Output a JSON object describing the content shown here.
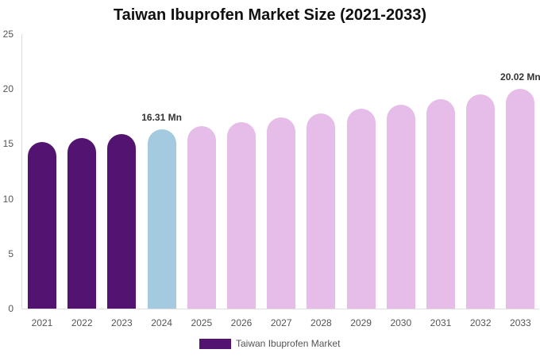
{
  "chart_data": {
    "type": "bar",
    "title": "Taiwan Ibuprofen Market Size (2021-2033)",
    "xlabel": "",
    "ylabel": "",
    "ylim": [
      0,
      25
    ],
    "yticks": [
      "0",
      "5",
      "10",
      "15",
      "20",
      "25"
    ],
    "grid": false,
    "legend_position": "bottom",
    "categories": [
      "2021",
      "2022",
      "2023",
      "2024",
      "2025",
      "2026",
      "2027",
      "2028",
      "2029",
      "2030",
      "2031",
      "2032",
      "2033"
    ],
    "series": [
      {
        "name": "Taiwan Ibuprofen Market",
        "values": [
          15.17,
          15.5,
          15.9,
          16.31,
          16.6,
          17.0,
          17.4,
          17.8,
          18.2,
          18.6,
          19.1,
          19.5,
          20.02
        ]
      }
    ],
    "bar_colors": [
      "#521371",
      "#521371",
      "#521371",
      "#a3cade",
      "#e6bde9",
      "#e6bde9",
      "#e6bde9",
      "#e6bde9",
      "#e6bde9",
      "#e6bde9",
      "#e6bde9",
      "#e6bde9",
      "#e6bde9"
    ],
    "annotations": [
      {
        "category": "2024",
        "text": "16.31 Mn"
      },
      {
        "category": "2033",
        "text": "20.02 Mn"
      }
    ]
  },
  "legend": {
    "label": "Taiwan Ibuprofen Market",
    "color": "#521371"
  }
}
